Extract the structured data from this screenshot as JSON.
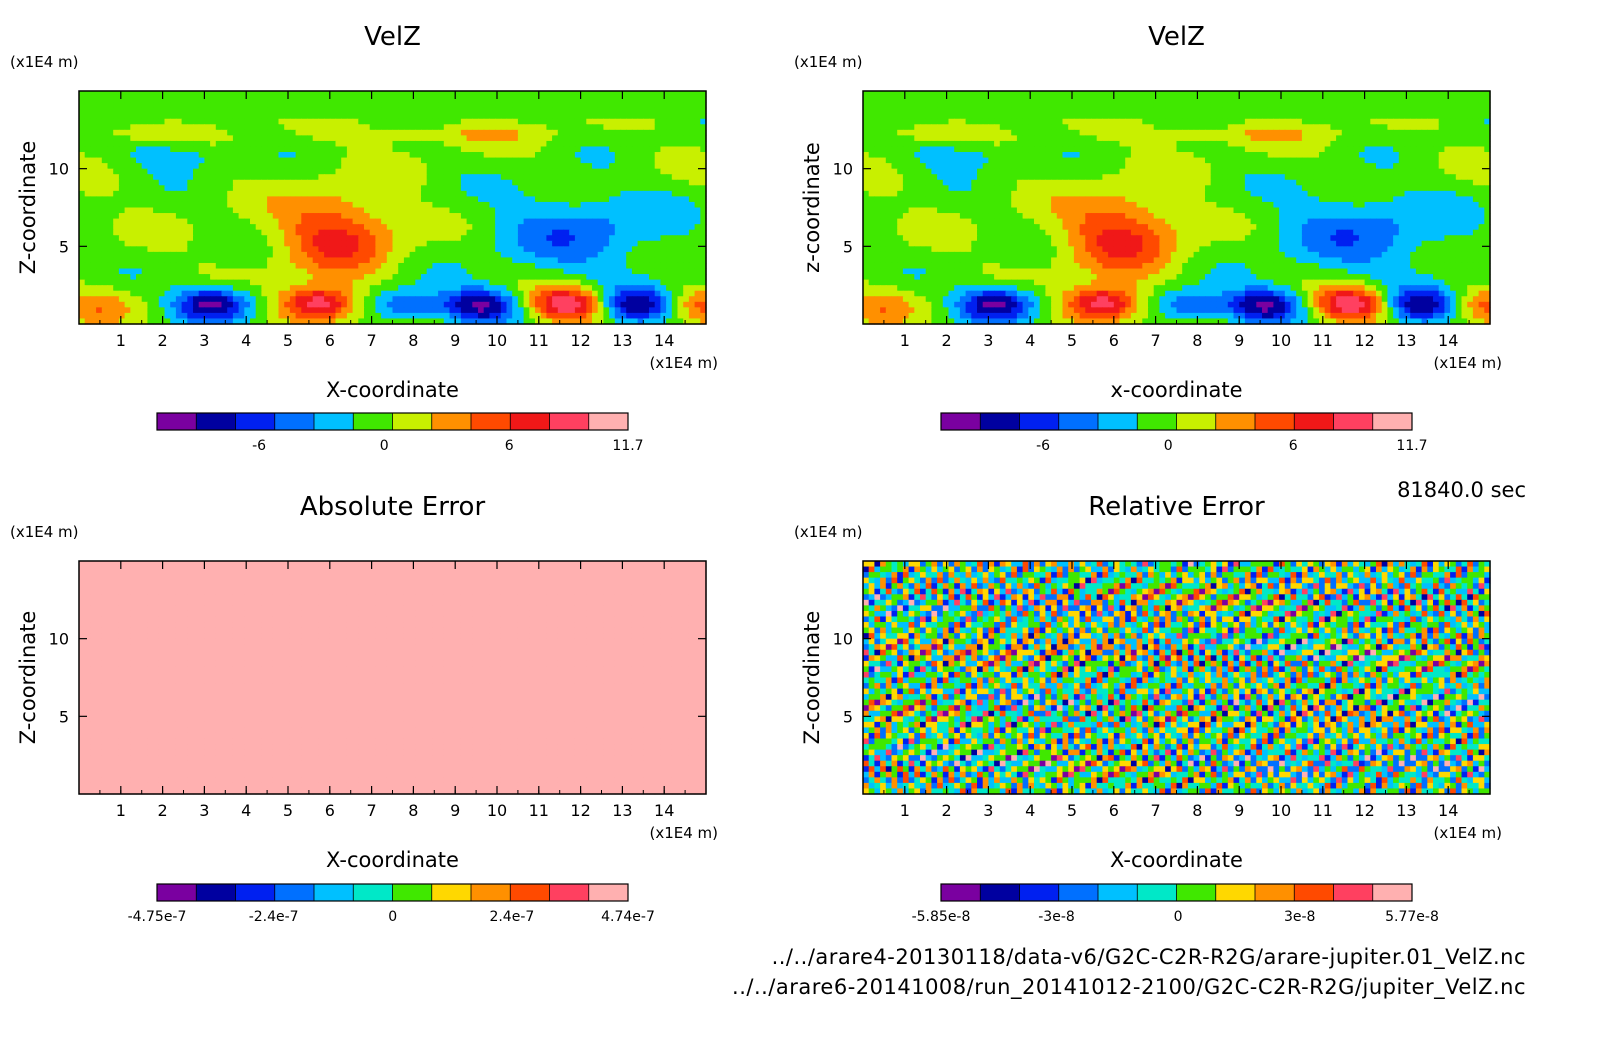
{
  "time_label": "81840.0 sec",
  "footer_lines": [
    "../../arare4-20130118/data-v6/G2C-C2R-R2G/arare-jupiter.01_VelZ.nc",
    "../../arare6-20141008/run_20141012-2100/G2C-C2R-R2G/jupiter_VelZ.nc"
  ],
  "palette": [
    "#7a00a0",
    "#0000a0",
    "#0020f0",
    "#0070ff",
    "#00c0ff",
    "#00e8c8",
    "#40e800",
    "#c8f000",
    "#ffd800",
    "#ff9000",
    "#ff4a00",
    "#f01818",
    "#ff4060",
    "#ffb0b0"
  ],
  "chart_data": [
    {
      "type": "heatmap",
      "title": "VelZ",
      "xlabel": "X-coordinate",
      "ylabel": "Z-coordinate",
      "x_unit": "(x1E4 m)",
      "y_unit": "(x1E4 m)",
      "xlim": [
        0,
        15
      ],
      "ylim": [
        0,
        15
      ],
      "x_ticks": [
        "1",
        "2",
        "3",
        "4",
        "5",
        "6",
        "7",
        "8",
        "9",
        "10",
        "11",
        "12",
        "13",
        "14"
      ],
      "y_ticks": [
        "5",
        "10"
      ],
      "pattern": "velz",
      "colorbar": {
        "ticks": [
          "-6",
          "0",
          "6",
          "11.7"
        ],
        "positions": [
          -6,
          0,
          6,
          11.7
        ],
        "range": [
          -10.9,
          11.7
        ],
        "levels": 12,
        "palette_indices": [
          0,
          1,
          2,
          3,
          4,
          6,
          7,
          9,
          10,
          11,
          12,
          13
        ]
      }
    },
    {
      "type": "heatmap",
      "title": "VelZ",
      "xlabel": "x-coordinate",
      "ylabel": "z-coordinate",
      "x_unit": "(x1E4 m)",
      "y_unit": "(x1E4 m)",
      "xlim": [
        0,
        15
      ],
      "ylim": [
        0,
        15
      ],
      "x_ticks": [
        "1",
        "2",
        "3",
        "4",
        "5",
        "6",
        "7",
        "8",
        "9",
        "10",
        "11",
        "12",
        "13",
        "14"
      ],
      "y_ticks": [
        "5",
        "10"
      ],
      "pattern": "velz",
      "colorbar": {
        "ticks": [
          "-6",
          "0",
          "6",
          "11.7"
        ],
        "positions": [
          -6,
          0,
          6,
          11.7
        ],
        "range": [
          -10.9,
          11.7
        ],
        "levels": 12,
        "palette_indices": [
          0,
          1,
          2,
          3,
          4,
          6,
          7,
          9,
          10,
          11,
          12,
          13
        ]
      }
    },
    {
      "type": "heatmap",
      "title": "Absolute Error",
      "xlabel": "X-coordinate",
      "ylabel": "Z-coordinate",
      "x_unit": "(x1E4 m)",
      "y_unit": "(x1E4 m)",
      "xlim": [
        0,
        15
      ],
      "ylim": [
        0,
        15
      ],
      "x_ticks": [
        "1",
        "2",
        "3",
        "4",
        "5",
        "6",
        "7",
        "8",
        "9",
        "10",
        "11",
        "12",
        "13",
        "14"
      ],
      "y_ticks": [
        "5",
        "10"
      ],
      "pattern": "abs",
      "colorbar": {
        "ticks": [
          "-4.75e-7",
          "-2.4e-7",
          "0",
          "2.4e-7",
          "4.74e-7"
        ],
        "positions": [
          -4.75e-07,
          -2.4e-07,
          0,
          2.4e-07,
          4.74e-07
        ],
        "range": [
          -4.75e-07,
          4.74e-07
        ],
        "levels": 12,
        "palette_indices": [
          0,
          1,
          2,
          3,
          4,
          5,
          6,
          8,
          9,
          10,
          12,
          13
        ]
      }
    },
    {
      "type": "heatmap",
      "title": "Relative Error",
      "xlabel": "X-coordinate",
      "ylabel": "Z-coordinate",
      "x_unit": "(x1E4 m)",
      "y_unit": "(x1E4 m)",
      "xlim": [
        0,
        15
      ],
      "ylim": [
        0,
        15
      ],
      "x_ticks": [
        "1",
        "2",
        "3",
        "4",
        "5",
        "6",
        "7",
        "8",
        "9",
        "10",
        "11",
        "12",
        "13",
        "14"
      ],
      "y_ticks": [
        "5",
        "10"
      ],
      "pattern": "rel",
      "colorbar": {
        "ticks": [
          "-5.85e-8",
          "-3e-8",
          "0",
          "3e-8",
          "5.77e-8"
        ],
        "positions": [
          -5.85e-08,
          -3e-08,
          0,
          3e-08,
          5.77e-08
        ],
        "range": [
          -5.85e-08,
          5.77e-08
        ],
        "levels": 12,
        "palette_indices": [
          0,
          1,
          2,
          3,
          4,
          5,
          6,
          8,
          9,
          10,
          12,
          13
        ]
      }
    }
  ]
}
